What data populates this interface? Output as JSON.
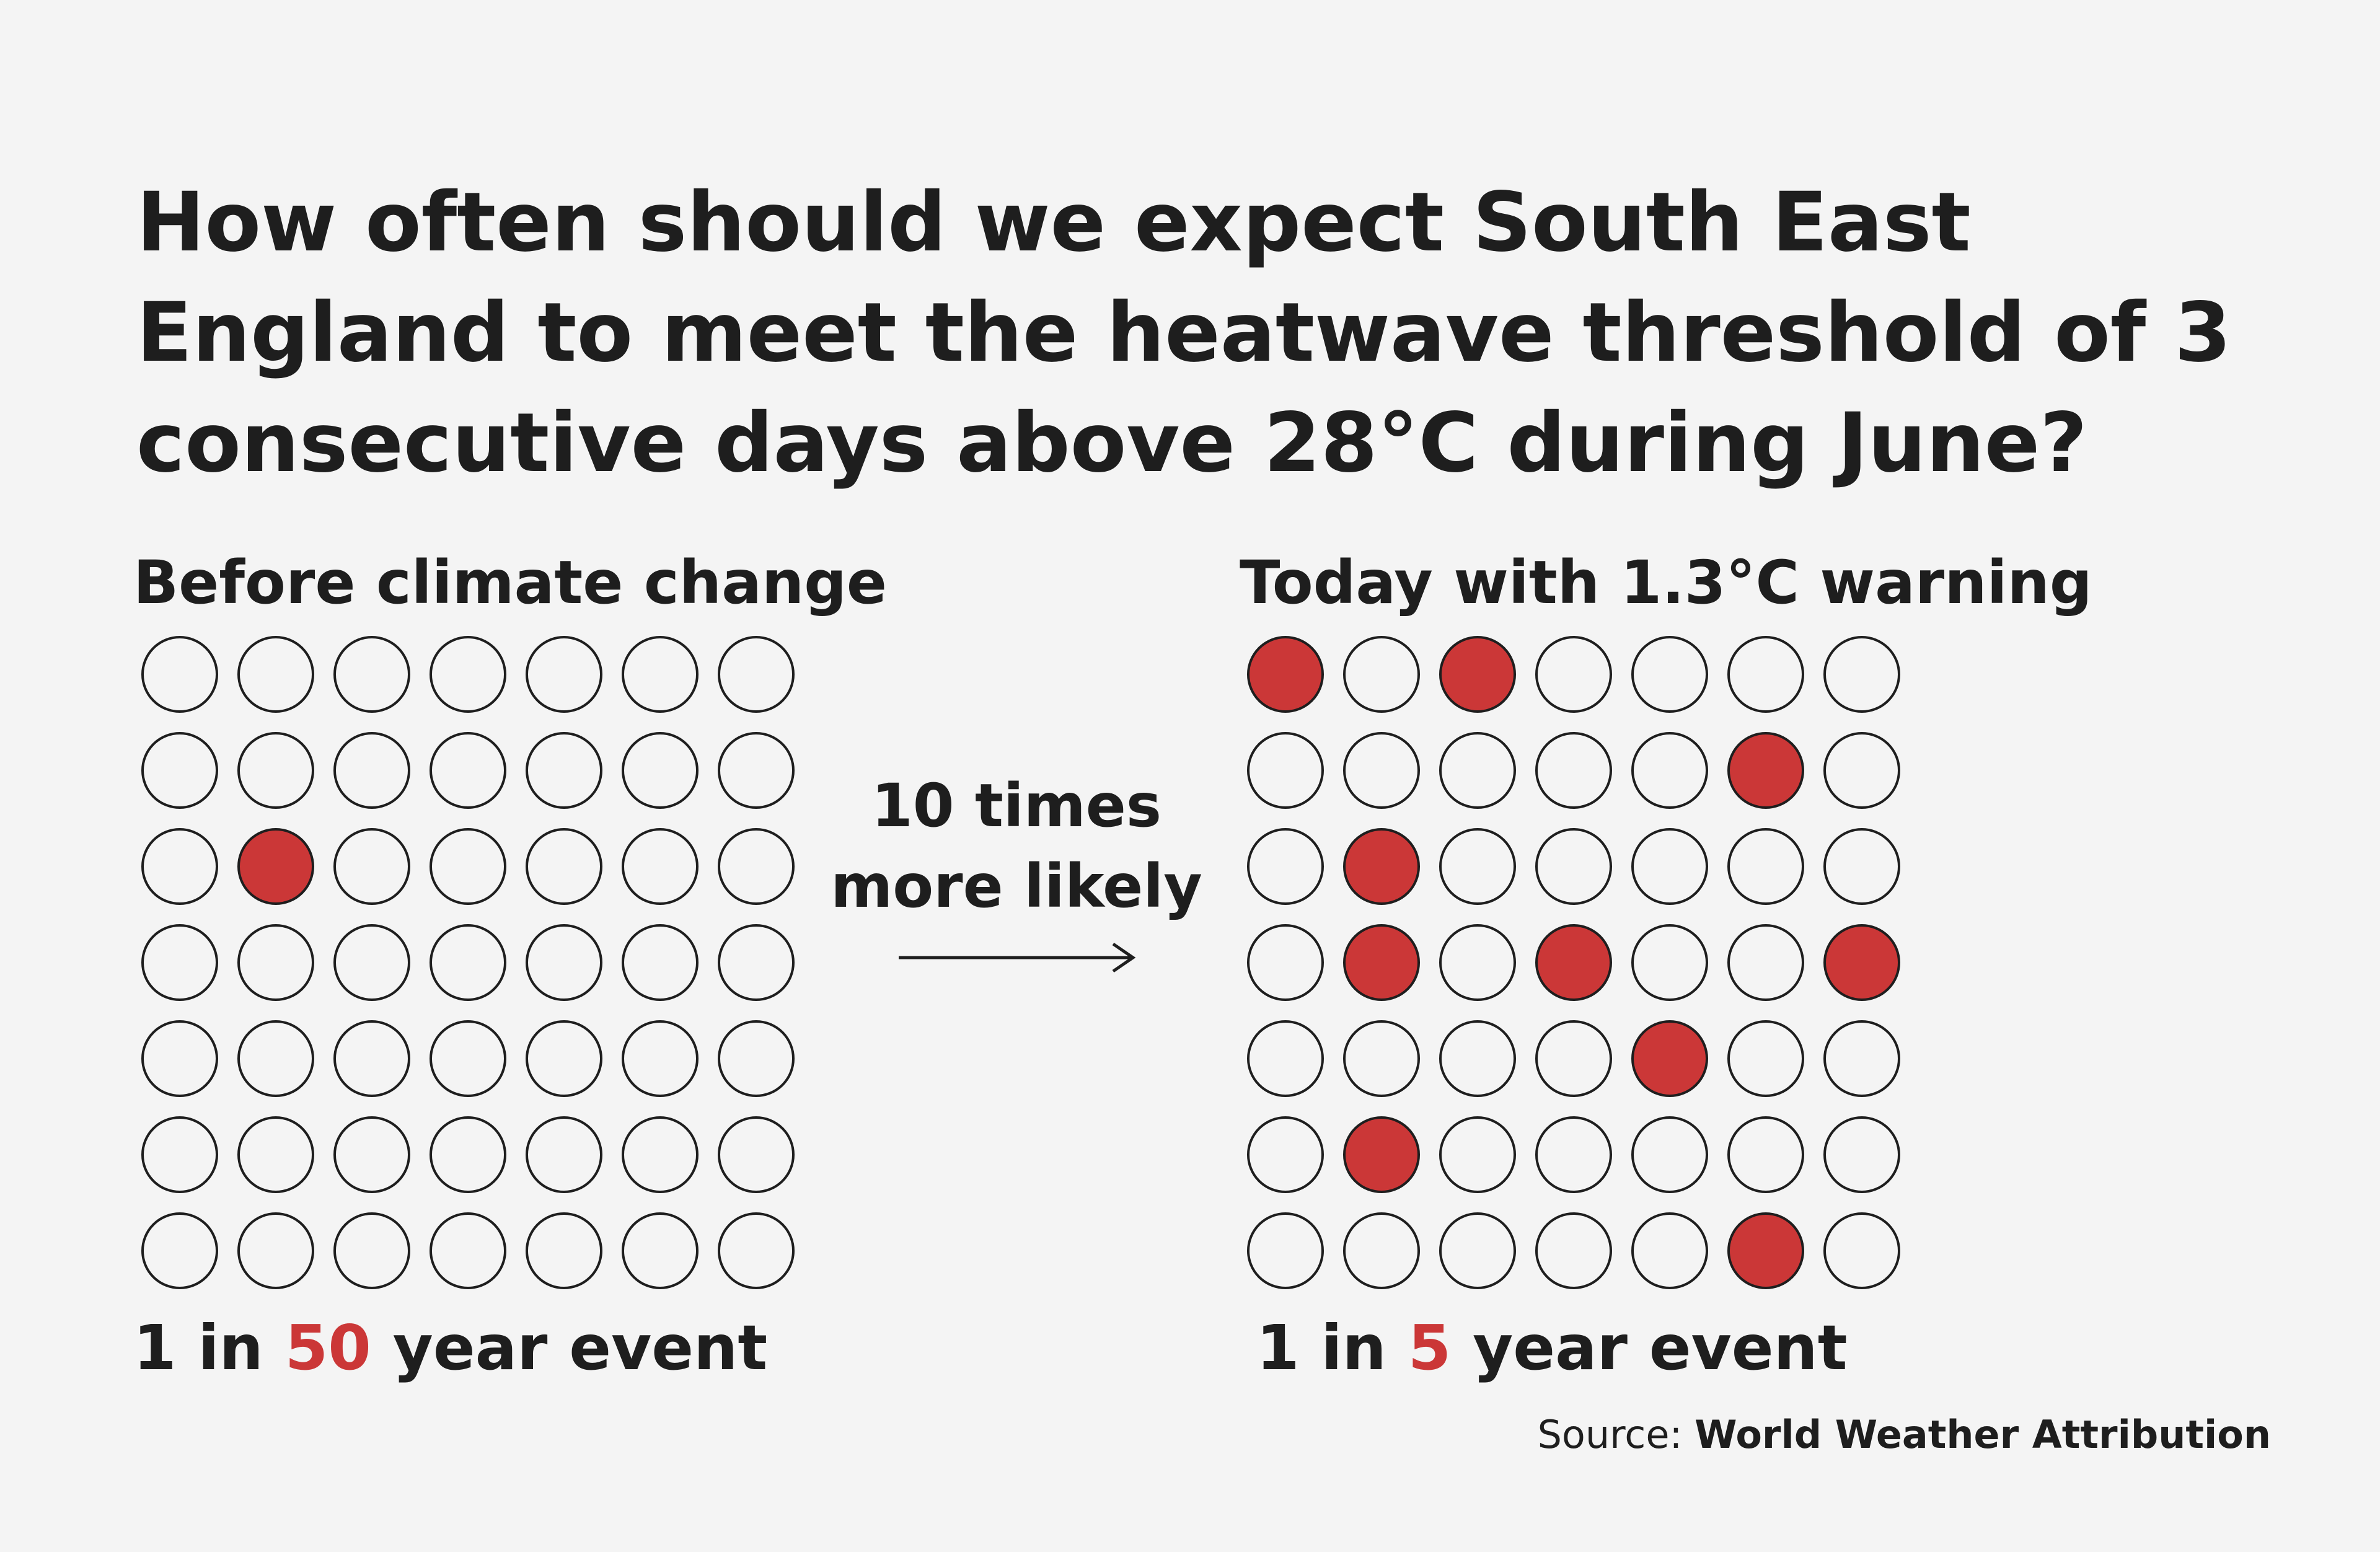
{
  "chart_data": {
    "type": "pictogram",
    "title": "How often should we expect South East England to meet the heatwave threshold of 3 consecutive days above 28°C during June?",
    "comparison_label": [
      "10 times",
      "more likely"
    ],
    "source_prefix": "Source:",
    "source_name": "World Weather Attribution",
    "colors": {
      "filled": "#cb3737",
      "outline": "#1e1e1e",
      "background": "#f4f4f4"
    },
    "panels": [
      {
        "label": "Before climate change",
        "result_prefix": "1 in ",
        "result_value": "50",
        "result_suffix": " year event",
        "rows": 7,
        "cols": 7,
        "filled_cells": [
          [
            2,
            1
          ]
        ]
      },
      {
        "label": "Today with 1.3°C warning",
        "result_prefix": "1 in ",
        "result_value": "5",
        "result_suffix": " year event",
        "rows": 7,
        "cols": 7,
        "filled_cells": [
          [
            0,
            0
          ],
          [
            0,
            2
          ],
          [
            1,
            5
          ],
          [
            2,
            1
          ],
          [
            3,
            1
          ],
          [
            3,
            3
          ],
          [
            3,
            6
          ],
          [
            4,
            4
          ],
          [
            5,
            1
          ],
          [
            6,
            5
          ]
        ]
      }
    ]
  }
}
